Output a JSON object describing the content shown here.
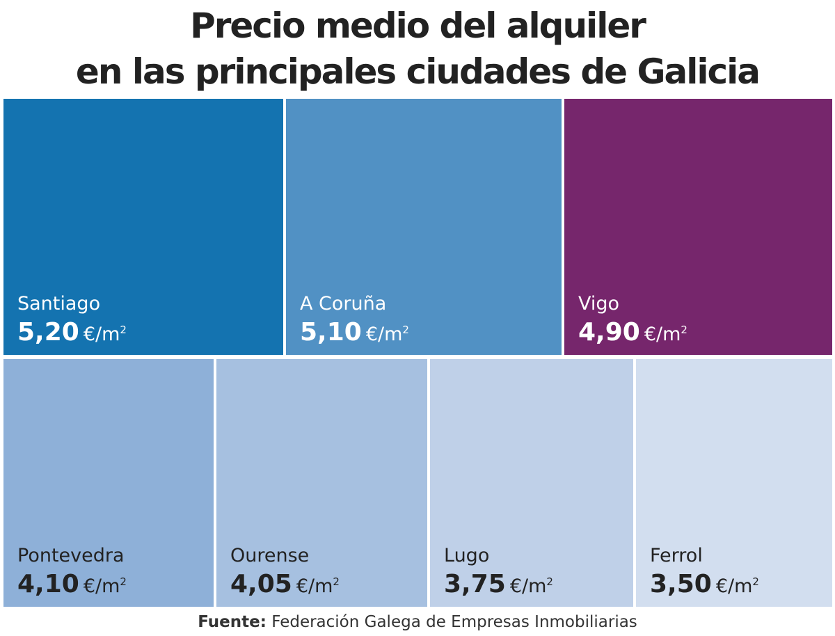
{
  "title_line1": "Precio medio del alquiler",
  "title_line2": "en las principales ciudades de Galicia",
  "unit": "€/m",
  "unit_sup": "2",
  "source_label": "Fuente:",
  "source_text": "Federación Galega de Empresas Inmobiliarias",
  "chart_data": {
    "type": "treemap",
    "title": "Precio medio del alquiler en las principales ciudades de Galicia",
    "unit": "€/m²",
    "categories": [
      "Santiago",
      "A Coruña",
      "Vigo",
      "Pontevedra",
      "Ourense",
      "Lugo",
      "Ferrol"
    ],
    "values": [
      5.2,
      5.1,
      4.9,
      4.1,
      4.05,
      3.75,
      3.5
    ],
    "value_labels": [
      "5,20",
      "5,10",
      "4,90",
      "4,10",
      "4,05",
      "3,75",
      "3,50"
    ],
    "colors": [
      "#1473b0",
      "#5191c4",
      "#76266c",
      "#8eb0d8",
      "#a6c0e0",
      "#bfd0e8",
      "#d2deef"
    ]
  }
}
